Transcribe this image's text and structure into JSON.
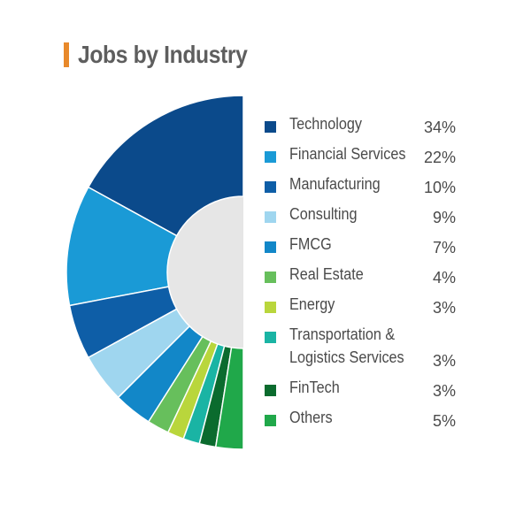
{
  "title": "Jobs by Industry",
  "colors": {
    "title_accent": "#e8892b",
    "hole": "#e6e6e6"
  },
  "chart_data": {
    "type": "pie",
    "title": "Jobs by Industry",
    "subtype": "half-donut",
    "categories": [
      "Technology",
      "Financial Services",
      "Manufacturing",
      "Consulting",
      "FMCG",
      "Real Estate",
      "Energy",
      "Transportation &\nLogistics Services",
      "FinTech",
      "Others"
    ],
    "values": [
      34,
      22,
      10,
      9,
      7,
      4,
      3,
      3,
      3,
      5
    ],
    "labels": [
      "34%",
      "22%",
      "10%",
      "9%",
      "7%",
      "4%",
      "3%",
      "3%",
      "3%",
      "5%"
    ],
    "colors": [
      "#0b4a8b",
      "#1a9ad6",
      "#0e5ea7",
      "#9fd6ef",
      "#1287c8",
      "#67bf5c",
      "#b9d63c",
      "#1ab4a4",
      "#0b6b2e",
      "#20a84a"
    ],
    "legend": "right"
  }
}
